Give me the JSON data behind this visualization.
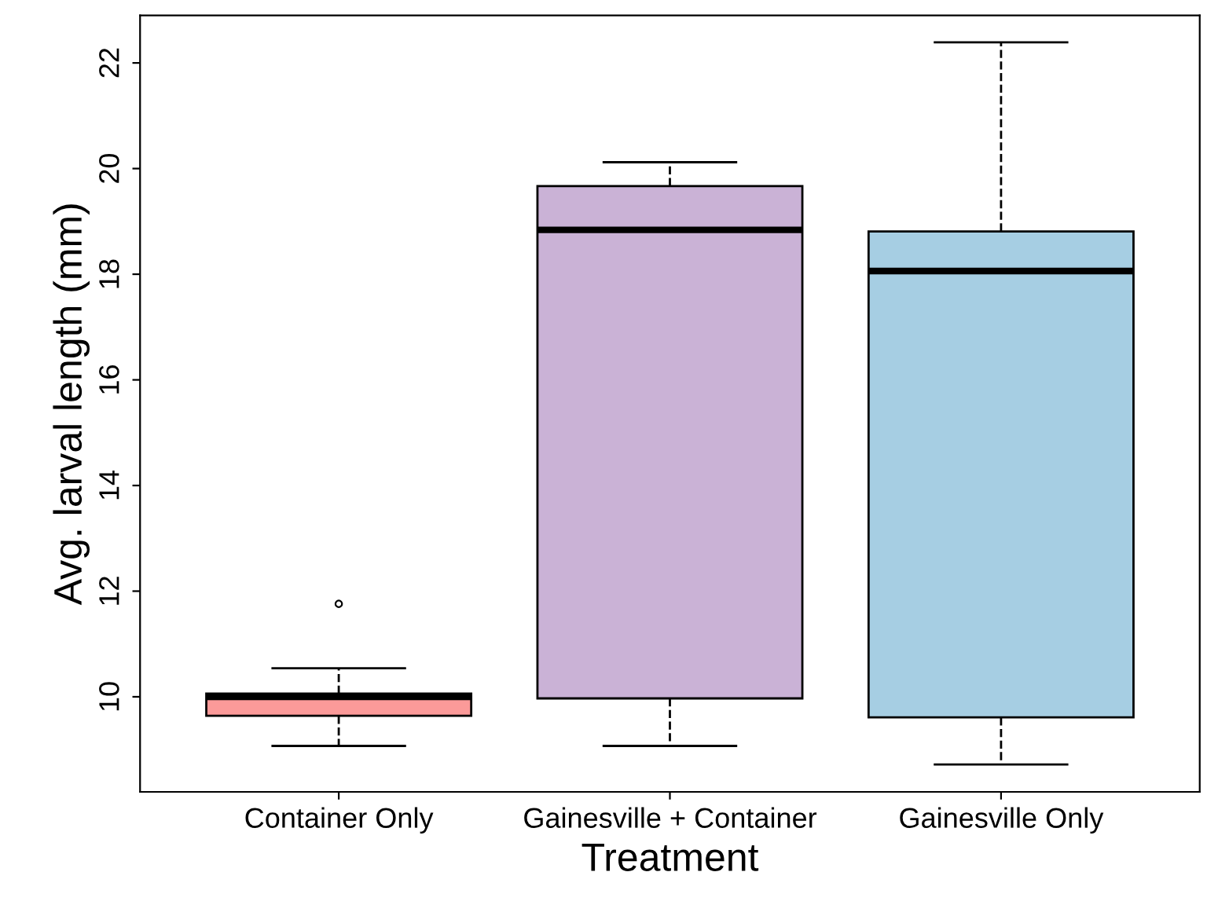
{
  "chart_data": {
    "type": "box",
    "xlabel": "Treatment",
    "ylabel": "Avg. larval length (mm)",
    "categories": [
      "Container Only",
      "Gainesville + Container",
      "Gainesville Only"
    ],
    "colors": [
      "#fb9a99",
      "#cab2d6",
      "#a6cee3"
    ],
    "boxes": [
      {
        "low": 9.07,
        "q1": 9.64,
        "median": 10.0,
        "q3": 10.06,
        "high": 10.54,
        "outliers": [
          11.76
        ]
      },
      {
        "low": 9.07,
        "q1": 9.97,
        "median": 18.84,
        "q3": 19.67,
        "high": 20.12
      },
      {
        "low": 8.72,
        "q1": 9.61,
        "median": 18.06,
        "q3": 18.81,
        "high": 22.39
      }
    ],
    "ylim": [
      8.2,
      22.9
    ],
    "yticks": [
      10,
      12,
      14,
      16,
      18,
      20,
      22
    ],
    "grid": false,
    "legend": false
  }
}
